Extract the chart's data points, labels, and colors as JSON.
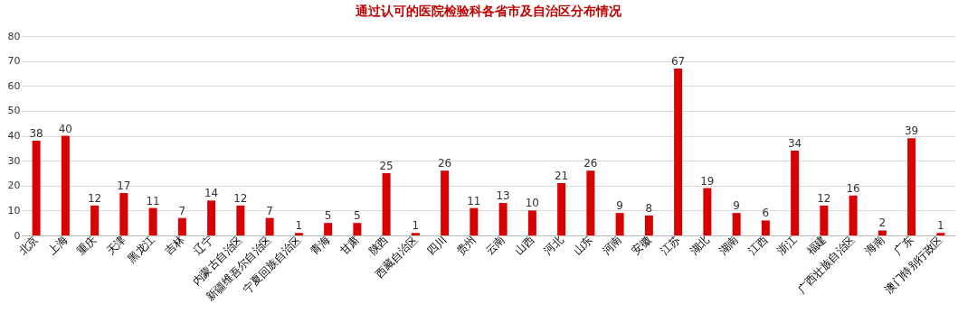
{
  "chart_data": {
    "type": "bar",
    "title": "通过认可的医院检验科各省市及自治区分布情况",
    "categories": [
      "北京",
      "上海",
      "重庆",
      "天津",
      "黑龙江",
      "吉林",
      "辽宁",
      "内蒙古自治区",
      "新疆维吾尔自治区",
      "宁夏回族自治区",
      "青海",
      "甘肃",
      "陕西",
      "西藏自治区",
      "四川",
      "贵州",
      "云南",
      "山西",
      "河北",
      "山东",
      "河南",
      "安徽",
      "江苏",
      "湖北",
      "湖南",
      "江西",
      "浙江",
      "福建",
      "广西壮族自治区",
      "海南",
      "广东",
      "澳门特别行政区"
    ],
    "values": [
      38,
      40,
      12,
      17,
      11,
      7,
      14,
      12,
      7,
      1,
      5,
      5,
      25,
      1,
      26,
      11,
      13,
      10,
      21,
      26,
      9,
      8,
      67,
      19,
      9,
      6,
      34,
      12,
      16,
      2,
      39,
      1
    ],
    "color": "#d90000",
    "ylim": [
      0,
      80
    ],
    "yticks": [
      0,
      10,
      20,
      30,
      40,
      50,
      60,
      70,
      80
    ],
    "grid": "y",
    "data_labels": true
  }
}
